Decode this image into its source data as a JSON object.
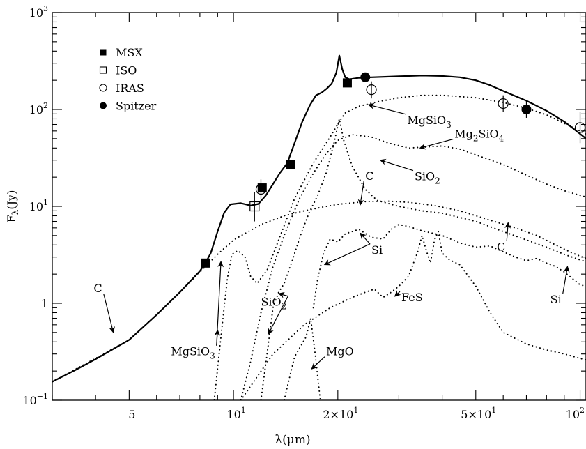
{
  "chart_data": {
    "type": "line",
    "xlabel": "λ(μm)",
    "ylabel": "Fλ(Jy)",
    "x_scale": "log",
    "y_scale": "log",
    "xlim": [
      3.0,
      104
    ],
    "ylim": [
      0.1,
      1000
    ],
    "x_tick_labels": [
      {
        "value": 5,
        "label": "5"
      },
      {
        "value": 10,
        "label": "10",
        "sup": "1"
      },
      {
        "value": 20,
        "label": "2×10",
        "sup": "1"
      },
      {
        "value": 50,
        "label": "5×10",
        "sup": "1"
      },
      {
        "value": 100,
        "label": "10",
        "sup": "2"
      }
    ],
    "y_tick_labels": [
      {
        "value": 0.1,
        "label": "10",
        "sup": "−1"
      },
      {
        "value": 1,
        "label": "1",
        "sup": ""
      },
      {
        "value": 10,
        "label": "10",
        "sup": "1"
      },
      {
        "value": 100,
        "label": "10",
        "sup": "2"
      },
      {
        "value": 1000,
        "label": "10",
        "sup": "3"
      }
    ],
    "legend": {
      "position": "top-left",
      "entries": [
        {
          "label": "MSX",
          "marker": "filled-square"
        },
        {
          "label": "ISO",
          "marker": "open-square"
        },
        {
          "label": "IRAS",
          "marker": "open-circle"
        },
        {
          "label": "Spitzer",
          "marker": "filled-circle"
        }
      ]
    },
    "observations": {
      "MSX": [
        {
          "x": 8.3,
          "y": 2.6
        },
        {
          "x": 12.1,
          "y": 15.5
        },
        {
          "x": 14.6,
          "y": 27
        },
        {
          "x": 21.3,
          "y": 188
        }
      ],
      "ISO": [
        {
          "x": 11.5,
          "y": 10,
          "ylo": 7,
          "yhi": 14
        }
      ],
      "IRAS": [
        {
          "x": 12,
          "y": 15,
          "ylo": 12,
          "yhi": 19
        },
        {
          "x": 25,
          "y": 160,
          "ylo": 130,
          "yhi": 195
        },
        {
          "x": 60,
          "y": 115,
          "ylo": 95,
          "yhi": 140
        },
        {
          "x": 100,
          "y": 65,
          "ylo": 45,
          "yhi": 95
        }
      ],
      "Spitzer": [
        {
          "x": 24,
          "y": 215
        },
        {
          "x": 70,
          "y": 100,
          "ylo": 82,
          "yhi": 122
        }
      ]
    },
    "series": [
      {
        "style": "solid",
        "points": [
          [
            3,
            0.155
          ],
          [
            3.5,
            0.205
          ],
          [
            4,
            0.265
          ],
          [
            5,
            0.42
          ],
          [
            6,
            0.76
          ],
          [
            7,
            1.3
          ],
          [
            8,
            2.15
          ],
          [
            8.3,
            2.6
          ],
          [
            8.6,
            3.3
          ],
          [
            9,
            5.5
          ],
          [
            9.4,
            8.6
          ],
          [
            9.8,
            10.5
          ],
          [
            10.5,
            10.8
          ],
          [
            11.2,
            10.2
          ],
          [
            11.8,
            10.6
          ],
          [
            12.4,
            13
          ],
          [
            13,
            17
          ],
          [
            13.6,
            22
          ],
          [
            14.3,
            28
          ],
          [
            15,
            45
          ],
          [
            15.8,
            75
          ],
          [
            16.6,
            110
          ],
          [
            17.3,
            140
          ],
          [
            18,
            150
          ],
          [
            18.6,
            165
          ],
          [
            19.2,
            185
          ],
          [
            19.8,
            240
          ],
          [
            20.2,
            360
          ],
          [
            20.6,
            260
          ],
          [
            21,
            215
          ],
          [
            21.6,
            205
          ],
          [
            23,
            212
          ],
          [
            25,
            215
          ],
          [
            30,
            220
          ],
          [
            35,
            224
          ],
          [
            40,
            222
          ],
          [
            45,
            215
          ],
          [
            50,
            200
          ],
          [
            55,
            178
          ],
          [
            60,
            155
          ],
          [
            70,
            123
          ],
          [
            80,
            97
          ],
          [
            90,
            75
          ],
          [
            100,
            56
          ],
          [
            104,
            50
          ]
        ]
      },
      {
        "style": "dotted",
        "points": [
          [
            8.8,
            0.1
          ],
          [
            9.2,
            0.45
          ],
          [
            9.6,
            1.8
          ],
          [
            9.9,
            3.2
          ],
          [
            10.3,
            3.5
          ],
          [
            10.8,
            3.0
          ],
          [
            11.2,
            1.9
          ],
          [
            11.7,
            1.6
          ],
          [
            12.5,
            2.2
          ],
          [
            13.5,
            4.5
          ],
          [
            15,
            12
          ],
          [
            17,
            28
          ],
          [
            19,
            52
          ],
          [
            20.2,
            75
          ],
          [
            21,
            92
          ],
          [
            23,
            108
          ],
          [
            26,
            120
          ],
          [
            30,
            132
          ],
          [
            35,
            140
          ],
          [
            40,
            140
          ],
          [
            50,
            132
          ],
          [
            60,
            118
          ],
          [
            70,
            103
          ],
          [
            80,
            88
          ],
          [
            90,
            72
          ],
          [
            100,
            60
          ],
          [
            104,
            56
          ]
        ]
      },
      {
        "style": "dotted",
        "points": [
          [
            10.5,
            0.1
          ],
          [
            11.2,
            0.25
          ],
          [
            12,
            0.8
          ],
          [
            13,
            2.4
          ],
          [
            14,
            5
          ],
          [
            15.5,
            12
          ],
          [
            17,
            22
          ],
          [
            18.5,
            35
          ],
          [
            20,
            48
          ],
          [
            22,
            55
          ],
          [
            25,
            52
          ],
          [
            28,
            45
          ],
          [
            32,
            40
          ],
          [
            36,
            41
          ],
          [
            40,
            42
          ],
          [
            45,
            39
          ],
          [
            50,
            34
          ],
          [
            60,
            27
          ],
          [
            70,
            21
          ],
          [
            80,
            17
          ],
          [
            90,
            14.5
          ],
          [
            100,
            13
          ],
          [
            104,
            12.5
          ]
        ]
      },
      {
        "style": "dotted",
        "points": [
          [
            12,
            0.1
          ],
          [
            12.5,
            0.3
          ],
          [
            13,
            0.9
          ],
          [
            13.5,
            1.3
          ],
          [
            14,
            1.6
          ],
          [
            14.8,
            2.8
          ],
          [
            15.6,
            5
          ],
          [
            16.5,
            8.5
          ],
          [
            17.5,
            13
          ],
          [
            18.5,
            22
          ],
          [
            19.5,
            45
          ],
          [
            20.2,
            80
          ],
          [
            20.8,
            48
          ],
          [
            22,
            26
          ],
          [
            24,
            15
          ],
          [
            26,
            11.5
          ],
          [
            30,
            10
          ],
          [
            35,
            9
          ],
          [
            40,
            8.5
          ],
          [
            50,
            7
          ],
          [
            60,
            5.5
          ],
          [
            70,
            4.5
          ],
          [
            80,
            3.8
          ],
          [
            90,
            3.2
          ],
          [
            100,
            2.8
          ],
          [
            104,
            2.7
          ]
        ]
      },
      {
        "style": "dotted",
        "points": [
          [
            3,
            0.155
          ],
          [
            4,
            0.27
          ],
          [
            5,
            0.42
          ],
          [
            6,
            0.76
          ],
          [
            7,
            1.3
          ],
          [
            8,
            2.1
          ],
          [
            9,
            3.2
          ],
          [
            10,
            4.5
          ],
          [
            12,
            6.5
          ],
          [
            14,
            8
          ],
          [
            16,
            9
          ],
          [
            18,
            9.8
          ],
          [
            20,
            10.5
          ],
          [
            24,
            11.2
          ],
          [
            28,
            11.3
          ],
          [
            32,
            11
          ],
          [
            38,
            10.2
          ],
          [
            45,
            9
          ],
          [
            55,
            7.2
          ],
          [
            65,
            6
          ],
          [
            75,
            5
          ],
          [
            85,
            4
          ],
          [
            95,
            3.3
          ],
          [
            104,
            2.9
          ]
        ]
      },
      {
        "style": "dotted",
        "points": [
          [
            17,
            0.9
          ],
          [
            17.5,
            1.8
          ],
          [
            18.2,
            3.3
          ],
          [
            19,
            4.6
          ],
          [
            20,
            4.3
          ],
          [
            21,
            5.2
          ],
          [
            23,
            5.8
          ],
          [
            25,
            4.8
          ],
          [
            27,
            4.6
          ],
          [
            28.5,
            5.8
          ],
          [
            30,
            6.5
          ],
          [
            32,
            6.2
          ],
          [
            35,
            5.6
          ],
          [
            40,
            5
          ],
          [
            45,
            4.2
          ],
          [
            50,
            3.8
          ],
          [
            55,
            3.9
          ],
          [
            60,
            3.4
          ],
          [
            65,
            3.0
          ],
          [
            70,
            2.75
          ],
          [
            75,
            2.9
          ],
          [
            80,
            2.6
          ],
          [
            85,
            2.4
          ],
          [
            90,
            2.1
          ],
          [
            95,
            1.8
          ],
          [
            100,
            1.55
          ],
          [
            104,
            1.5
          ]
        ]
      },
      {
        "style": "dotted",
        "points": [
          [
            10.5,
            0.1
          ],
          [
            13,
            0.3
          ],
          [
            16,
            0.6
          ],
          [
            19,
            0.9
          ],
          [
            22,
            1.15
          ],
          [
            24,
            1.3
          ],
          [
            25.5,
            1.4
          ],
          [
            27,
            1.15
          ],
          [
            28.5,
            1.3
          ],
          [
            30,
            1.5
          ],
          [
            32,
            1.9
          ],
          [
            34,
            3.4
          ],
          [
            35,
            5
          ],
          [
            36,
            3.5
          ],
          [
            37,
            2.6
          ],
          [
            38,
            4.5
          ],
          [
            39,
            5.5
          ],
          [
            40,
            3.3
          ],
          [
            42,
            2.8
          ],
          [
            45,
            2.5
          ],
          [
            50,
            1.5
          ],
          [
            55,
            0.8
          ],
          [
            60,
            0.5
          ],
          [
            70,
            0.38
          ],
          [
            80,
            0.33
          ],
          [
            90,
            0.3
          ],
          [
            100,
            0.27
          ],
          [
            104,
            0.26
          ]
        ]
      },
      {
        "style": "dotted",
        "points": [
          [
            14,
            0.1
          ],
          [
            15,
            0.28
          ],
          [
            16.2,
            0.45
          ],
          [
            16.7,
            0.7
          ],
          [
            17.2,
            0.3
          ],
          [
            17.8,
            0.1
          ]
        ]
      }
    ],
    "annotations": [
      {
        "text": "C",
        "tx": 3.95,
        "ty": 1.3,
        "ax": 4.5,
        "ay": 0.5
      },
      {
        "text": "MgSiO",
        "sub": "3",
        "tx": 6.6,
        "ty": 0.29,
        "ax": 9.2,
        "ay": 2.7,
        "ax2": 9.0,
        "ay2": 0.53
      },
      {
        "text": "SiO",
        "sub": "2",
        "tx": 12.0,
        "ty": 0.94,
        "ax": 13.5,
        "ay": 1.26,
        "ax2": 12.6,
        "ay2": 0.48
      },
      {
        "text": "MgO",
        "tx": 18.5,
        "ty": 0.29,
        "ax": 16.8,
        "ay": 0.21
      },
      {
        "text": "FeS",
        "tx": 30.5,
        "ty": 1.05,
        "ax": 29.2,
        "ay": 1.18
      },
      {
        "text": "Si",
        "tx": 25.0,
        "ty": 3.25,
        "ax": 23.2,
        "ay": 5.3,
        "ax2": 18.3,
        "ay2": 2.5
      },
      {
        "text": "Si",
        "tx": 82,
        "ty": 1.0,
        "ax": 92,
        "ay": 2.4
      },
      {
        "text": "C",
        "tx": 57.5,
        "ty": 3.5,
        "ax": 62,
        "ay": 6.8
      },
      {
        "text": "C",
        "tx": 24.0,
        "ty": 18.8,
        "ax": 23.2,
        "ay": 10.3
      },
      {
        "text": "SiO",
        "sub": "2",
        "tx": 33.3,
        "ty": 18.6,
        "ax": 26.5,
        "ay": 30
      },
      {
        "text": "Mg",
        "sub": "2",
        "tail": "SiO",
        "sub2": "4",
        "tx": 43.4,
        "ty": 51.1,
        "ax": 34.5,
        "ay": 40
      },
      {
        "text": "MgSiO",
        "sub": "3",
        "tx": 31.7,
        "ty": 70.8,
        "ax": 24.5,
        "ay": 112
      }
    ]
  }
}
